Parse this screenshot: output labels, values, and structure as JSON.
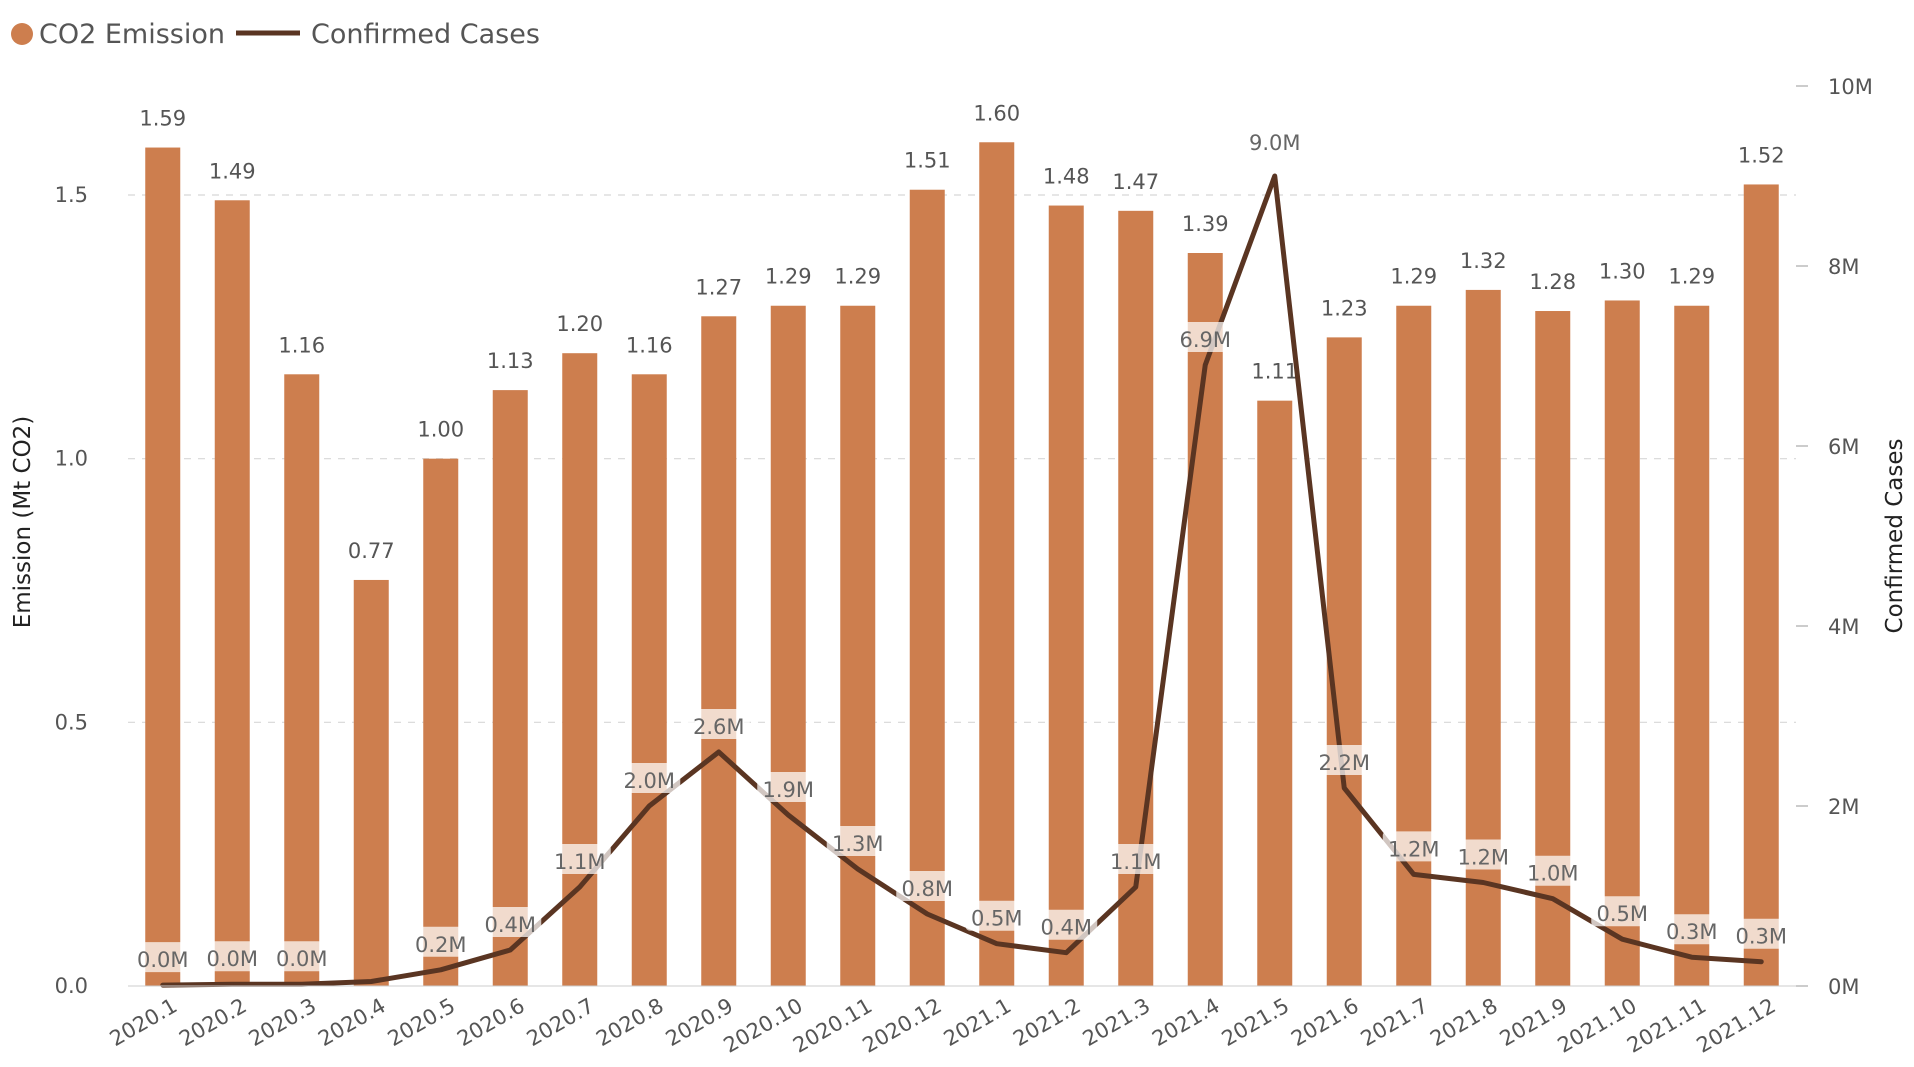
{
  "legend": {
    "bar_series_name": "CO2 Emission",
    "line_series_name": "Confirmed Cases"
  },
  "colors": {
    "bar": "#CD7E4E",
    "line": "#5A3522"
  },
  "chart_data": {
    "type": "bar+line",
    "categories": [
      "2020.1",
      "2020.2",
      "2020.3",
      "2020.4",
      "2020.5",
      "2020.6",
      "2020.7",
      "2020.8",
      "2020.9",
      "2020.10",
      "2020.11",
      "2020.12",
      "2021.1",
      "2021.2",
      "2021.3",
      "2021.4",
      "2021.5",
      "2021.6",
      "2021.7",
      "2021.8",
      "2021.9",
      "2021.10",
      "2021.11",
      "2021.12"
    ],
    "series": [
      {
        "name": "CO2 Emission",
        "type": "bar",
        "axis": "left",
        "values": [
          1.59,
          1.49,
          1.16,
          0.77,
          1.0,
          1.13,
          1.2,
          1.16,
          1.27,
          1.29,
          1.29,
          1.51,
          1.6,
          1.48,
          1.47,
          1.39,
          1.11,
          1.23,
          1.29,
          1.32,
          1.28,
          1.3,
          1.29,
          1.52
        ],
        "labels": [
          "1.59",
          "1.49",
          "1.16",
          "0.77",
          "1.00",
          "1.13",
          "1.20",
          "1.16",
          "1.27",
          "1.29",
          "1.29",
          "1.51",
          "1.60",
          "1.48",
          "1.47",
          "1.39",
          "1.11",
          "1.23",
          "1.29",
          "1.32",
          "1.28",
          "1.30",
          "1.29",
          "1.52"
        ]
      },
      {
        "name": "Confirmed Cases",
        "type": "line",
        "axis": "right",
        "values": [
          0.01,
          0.02,
          0.02,
          0.05,
          0.18,
          0.4,
          1.1,
          2.0,
          2.6,
          1.9,
          1.3,
          0.8,
          0.47,
          0.37,
          1.1,
          6.9,
          9.0,
          2.2,
          1.24,
          1.15,
          0.97,
          0.52,
          0.32,
          0.27
        ],
        "labels": [
          "0.0M",
          "0.0M",
          "0.0M",
          "",
          "0.2M",
          "0.4M",
          "1.1M",
          "2.0M",
          "2.6M",
          "1.9M",
          "1.3M",
          "0.8M",
          "0.5M",
          "0.4M",
          "1.1M",
          "6.9M",
          "9.0M",
          "2.2M",
          "1.2M",
          "1.2M",
          "1.0M",
          "0.5M",
          "0.3M",
          "0.3M"
        ]
      }
    ],
    "y_left": {
      "label": "Emission (Mt CO2)",
      "lim": [
        0,
        1.6
      ],
      "ticks": [
        0,
        0.5,
        1.0,
        1.5
      ],
      "tick_labels": [
        "0.0",
        "0.5",
        "1.0",
        "1.5"
      ]
    },
    "y_right": {
      "label": "Confirmed Cases",
      "lim": [
        0,
        10
      ],
      "ticks": [
        0,
        2,
        4,
        6,
        8,
        10
      ],
      "tick_labels": [
        "0M",
        "2M",
        "4M",
        "6M",
        "8M",
        "10M"
      ]
    },
    "grid": true,
    "legend_position": "top-left"
  }
}
